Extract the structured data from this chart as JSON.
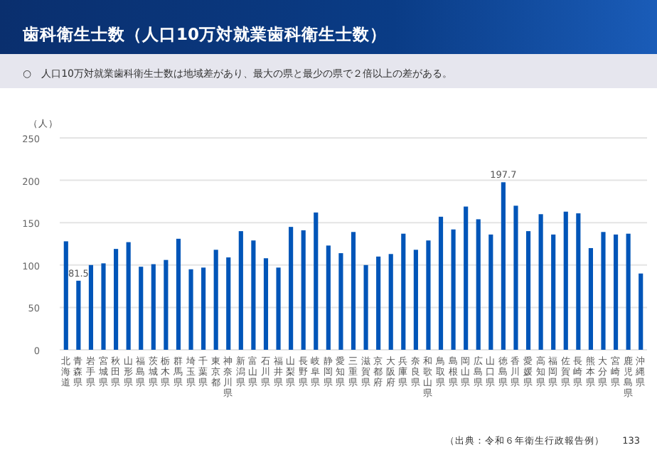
{
  "chart_data": {
    "type": "bar",
    "title": "歯科衛生士数（人口10万対就業歯科衛生士数）",
    "subtitle": "○　人口10万対就業歯科衛生士数は地域差があり、最大の県と最少の県で２倍以上の差がある。",
    "ylabel": "（人）",
    "categories": [
      "北海道",
      "青森県",
      "岩手県",
      "宮城県",
      "秋田県",
      "山形県",
      "福島県",
      "茨城県",
      "栃木県",
      "群馬県",
      "埼玉県",
      "千葉県",
      "東京都",
      "神奈川県",
      "新潟県",
      "富山県",
      "石川県",
      "福井県",
      "山梨県",
      "長野県",
      "岐阜県",
      "静岡県",
      "愛知県",
      "三重県",
      "滋賀県",
      "京都府",
      "大阪府",
      "兵庫県",
      "奈良県",
      "和歌山県",
      "鳥取県",
      "島根県",
      "岡山県",
      "広島県",
      "山口県",
      "徳島県",
      "香川県",
      "愛媛県",
      "高知県",
      "福岡県",
      "佐賀県",
      "長崎県",
      "熊本県",
      "大分県",
      "宮崎県",
      "鹿児島県",
      "沖縄県"
    ],
    "values": [
      128,
      81.5,
      100,
      102,
      119,
      127,
      98,
      101,
      106,
      131,
      95,
      97,
      118,
      109,
      140,
      129,
      108,
      97,
      145,
      141,
      162,
      123,
      114,
      139,
      100,
      110,
      113,
      137,
      118,
      129,
      157,
      142,
      169,
      154,
      136,
      197.7,
      170,
      140,
      160,
      136,
      163,
      161,
      120,
      139,
      136,
      137,
      90
    ],
    "value_labels": [
      null,
      "81.5",
      null,
      null,
      null,
      null,
      null,
      null,
      null,
      null,
      null,
      null,
      null,
      null,
      null,
      null,
      null,
      null,
      null,
      null,
      null,
      null,
      null,
      null,
      null,
      null,
      null,
      null,
      null,
      null,
      null,
      null,
      null,
      null,
      null,
      "197.7",
      null,
      null,
      null,
      null,
      null,
      null,
      null,
      null,
      null,
      null,
      null
    ],
    "color": "#0055b8",
    "ylim": [
      0,
      250
    ],
    "yticks": [
      0,
      50,
      100,
      150,
      200,
      250
    ],
    "grid": "y",
    "annotations": [
      "（出典：令和６年衛生行政報告例）",
      "133"
    ]
  }
}
